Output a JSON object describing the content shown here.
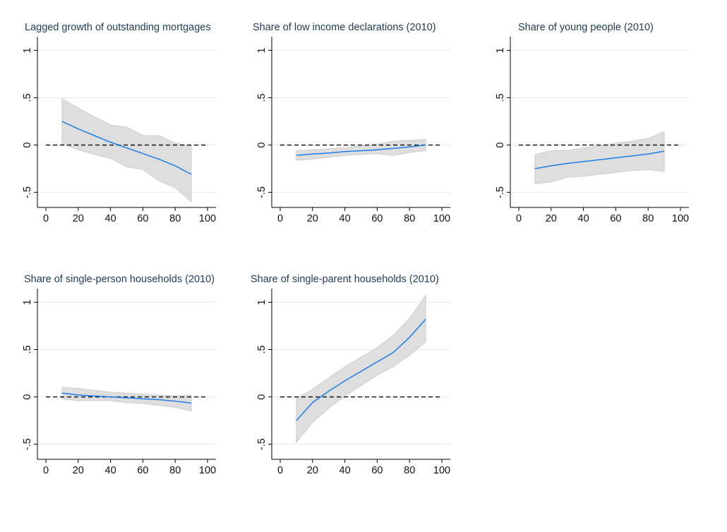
{
  "colors": {
    "estimate": "#1a7ee8",
    "band": "#dedede",
    "reference": "#000000"
  },
  "chart_data": [
    {
      "type": "line",
      "title": "Lagged growth of outstanding mortgages",
      "x": [
        10,
        20,
        30,
        40,
        50,
        60,
        70,
        80,
        90
      ],
      "series": [
        {
          "values": [
            0.25,
            0.17,
            0.1,
            0.03,
            -0.03,
            -0.09,
            -0.15,
            -0.22,
            -0.31
          ]
        },
        {
          "values": [
            0.49,
            0.39,
            0.3,
            0.21,
            0.19,
            0.1,
            0.1,
            0.02,
            -0.01
          ]
        },
        {
          "values": [
            0.01,
            -0.05,
            -0.1,
            -0.14,
            -0.23,
            -0.26,
            -0.38,
            -0.45,
            -0.6
          ]
        }
      ],
      "reference_line": 0,
      "xlim": [
        0,
        100
      ],
      "ylim": [
        -0.6,
        1.1
      ],
      "xticks": [
        "0",
        "20",
        "40",
        "60",
        "80",
        "100"
      ],
      "yticks": [
        "-.5",
        "0",
        ".5",
        "1"
      ],
      "grid": true
    },
    {
      "type": "line",
      "title": "Share of low income declarations (2010)",
      "x": [
        10,
        20,
        30,
        40,
        50,
        60,
        70,
        80,
        90
      ],
      "series": [
        {
          "values": [
            -0.11,
            -0.095,
            -0.085,
            -0.07,
            -0.06,
            -0.05,
            -0.035,
            -0.02,
            0.0
          ]
        },
        {
          "values": [
            -0.06,
            -0.05,
            -0.04,
            -0.03,
            -0.01,
            0.01,
            0.04,
            0.05,
            0.06
          ]
        },
        {
          "values": [
            -0.16,
            -0.15,
            -0.13,
            -0.11,
            -0.1,
            -0.09,
            -0.11,
            -0.08,
            -0.06
          ]
        }
      ],
      "reference_line": 0,
      "xlim": [
        0,
        100
      ],
      "ylim": [
        -0.6,
        1.1
      ],
      "xticks": [
        "0",
        "20",
        "40",
        "60",
        "80",
        "100"
      ],
      "yticks": [
        "-.5",
        "0",
        ".5",
        "1"
      ],
      "grid": true
    },
    {
      "type": "line",
      "title": "Share of young people (2010)",
      "x": [
        10,
        20,
        30,
        40,
        50,
        60,
        70,
        80,
        90
      ],
      "series": [
        {
          "values": [
            -0.25,
            -0.22,
            -0.195,
            -0.175,
            -0.155,
            -0.135,
            -0.115,
            -0.095,
            -0.065
          ]
        },
        {
          "values": [
            -0.1,
            -0.06,
            -0.06,
            -0.03,
            -0.01,
            0.02,
            0.04,
            0.07,
            0.14
          ]
        },
        {
          "values": [
            -0.41,
            -0.39,
            -0.34,
            -0.33,
            -0.31,
            -0.29,
            -0.27,
            -0.26,
            -0.28
          ]
        }
      ],
      "reference_line": 0,
      "xlim": [
        0,
        100
      ],
      "ylim": [
        -0.6,
        1.1
      ],
      "xticks": [
        "0",
        "20",
        "40",
        "60",
        "80",
        "100"
      ],
      "yticks": [
        "-.5",
        "0",
        ".5",
        "1"
      ],
      "grid": true
    },
    {
      "type": "line",
      "title": "Share of single-person households (2010)",
      "x": [
        10,
        20,
        30,
        40,
        50,
        60,
        70,
        80,
        90
      ],
      "series": [
        {
          "values": [
            0.04,
            0.02,
            0.01,
            0.0,
            -0.01,
            -0.02,
            -0.03,
            -0.045,
            -0.065
          ]
        },
        {
          "values": [
            0.1,
            0.09,
            0.07,
            0.05,
            0.04,
            0.03,
            0.02,
            0.01,
            0.02
          ]
        },
        {
          "values": [
            -0.02,
            -0.04,
            -0.04,
            -0.04,
            -0.06,
            -0.07,
            -0.09,
            -0.11,
            -0.15
          ]
        }
      ],
      "reference_line": 0,
      "xlim": [
        0,
        100
      ],
      "ylim": [
        -0.6,
        1.1
      ],
      "xticks": [
        "0",
        "20",
        "40",
        "60",
        "80",
        "100"
      ],
      "yticks": [
        "-.5",
        "0",
        ".5",
        "1"
      ],
      "grid": true
    },
    {
      "type": "line",
      "title": "Share of single-parent households (2010)",
      "x": [
        10,
        20,
        30,
        40,
        50,
        60,
        70,
        80,
        90
      ],
      "series": [
        {
          "values": [
            -0.25,
            -0.06,
            0.06,
            0.17,
            0.27,
            0.37,
            0.47,
            0.63,
            0.82
          ]
        },
        {
          "values": [
            -0.02,
            0.08,
            0.2,
            0.32,
            0.42,
            0.52,
            0.65,
            0.83,
            1.07
          ]
        },
        {
          "values": [
            -0.48,
            -0.27,
            -0.12,
            0.01,
            0.12,
            0.23,
            0.32,
            0.44,
            0.58
          ]
        }
      ],
      "reference_line": 0,
      "xlim": [
        0,
        100
      ],
      "ylim": [
        -0.6,
        1.1
      ],
      "xticks": [
        "0",
        "20",
        "40",
        "60",
        "80",
        "100"
      ],
      "yticks": [
        "-.5",
        "0",
        ".5",
        "1"
      ],
      "grid": true
    }
  ]
}
